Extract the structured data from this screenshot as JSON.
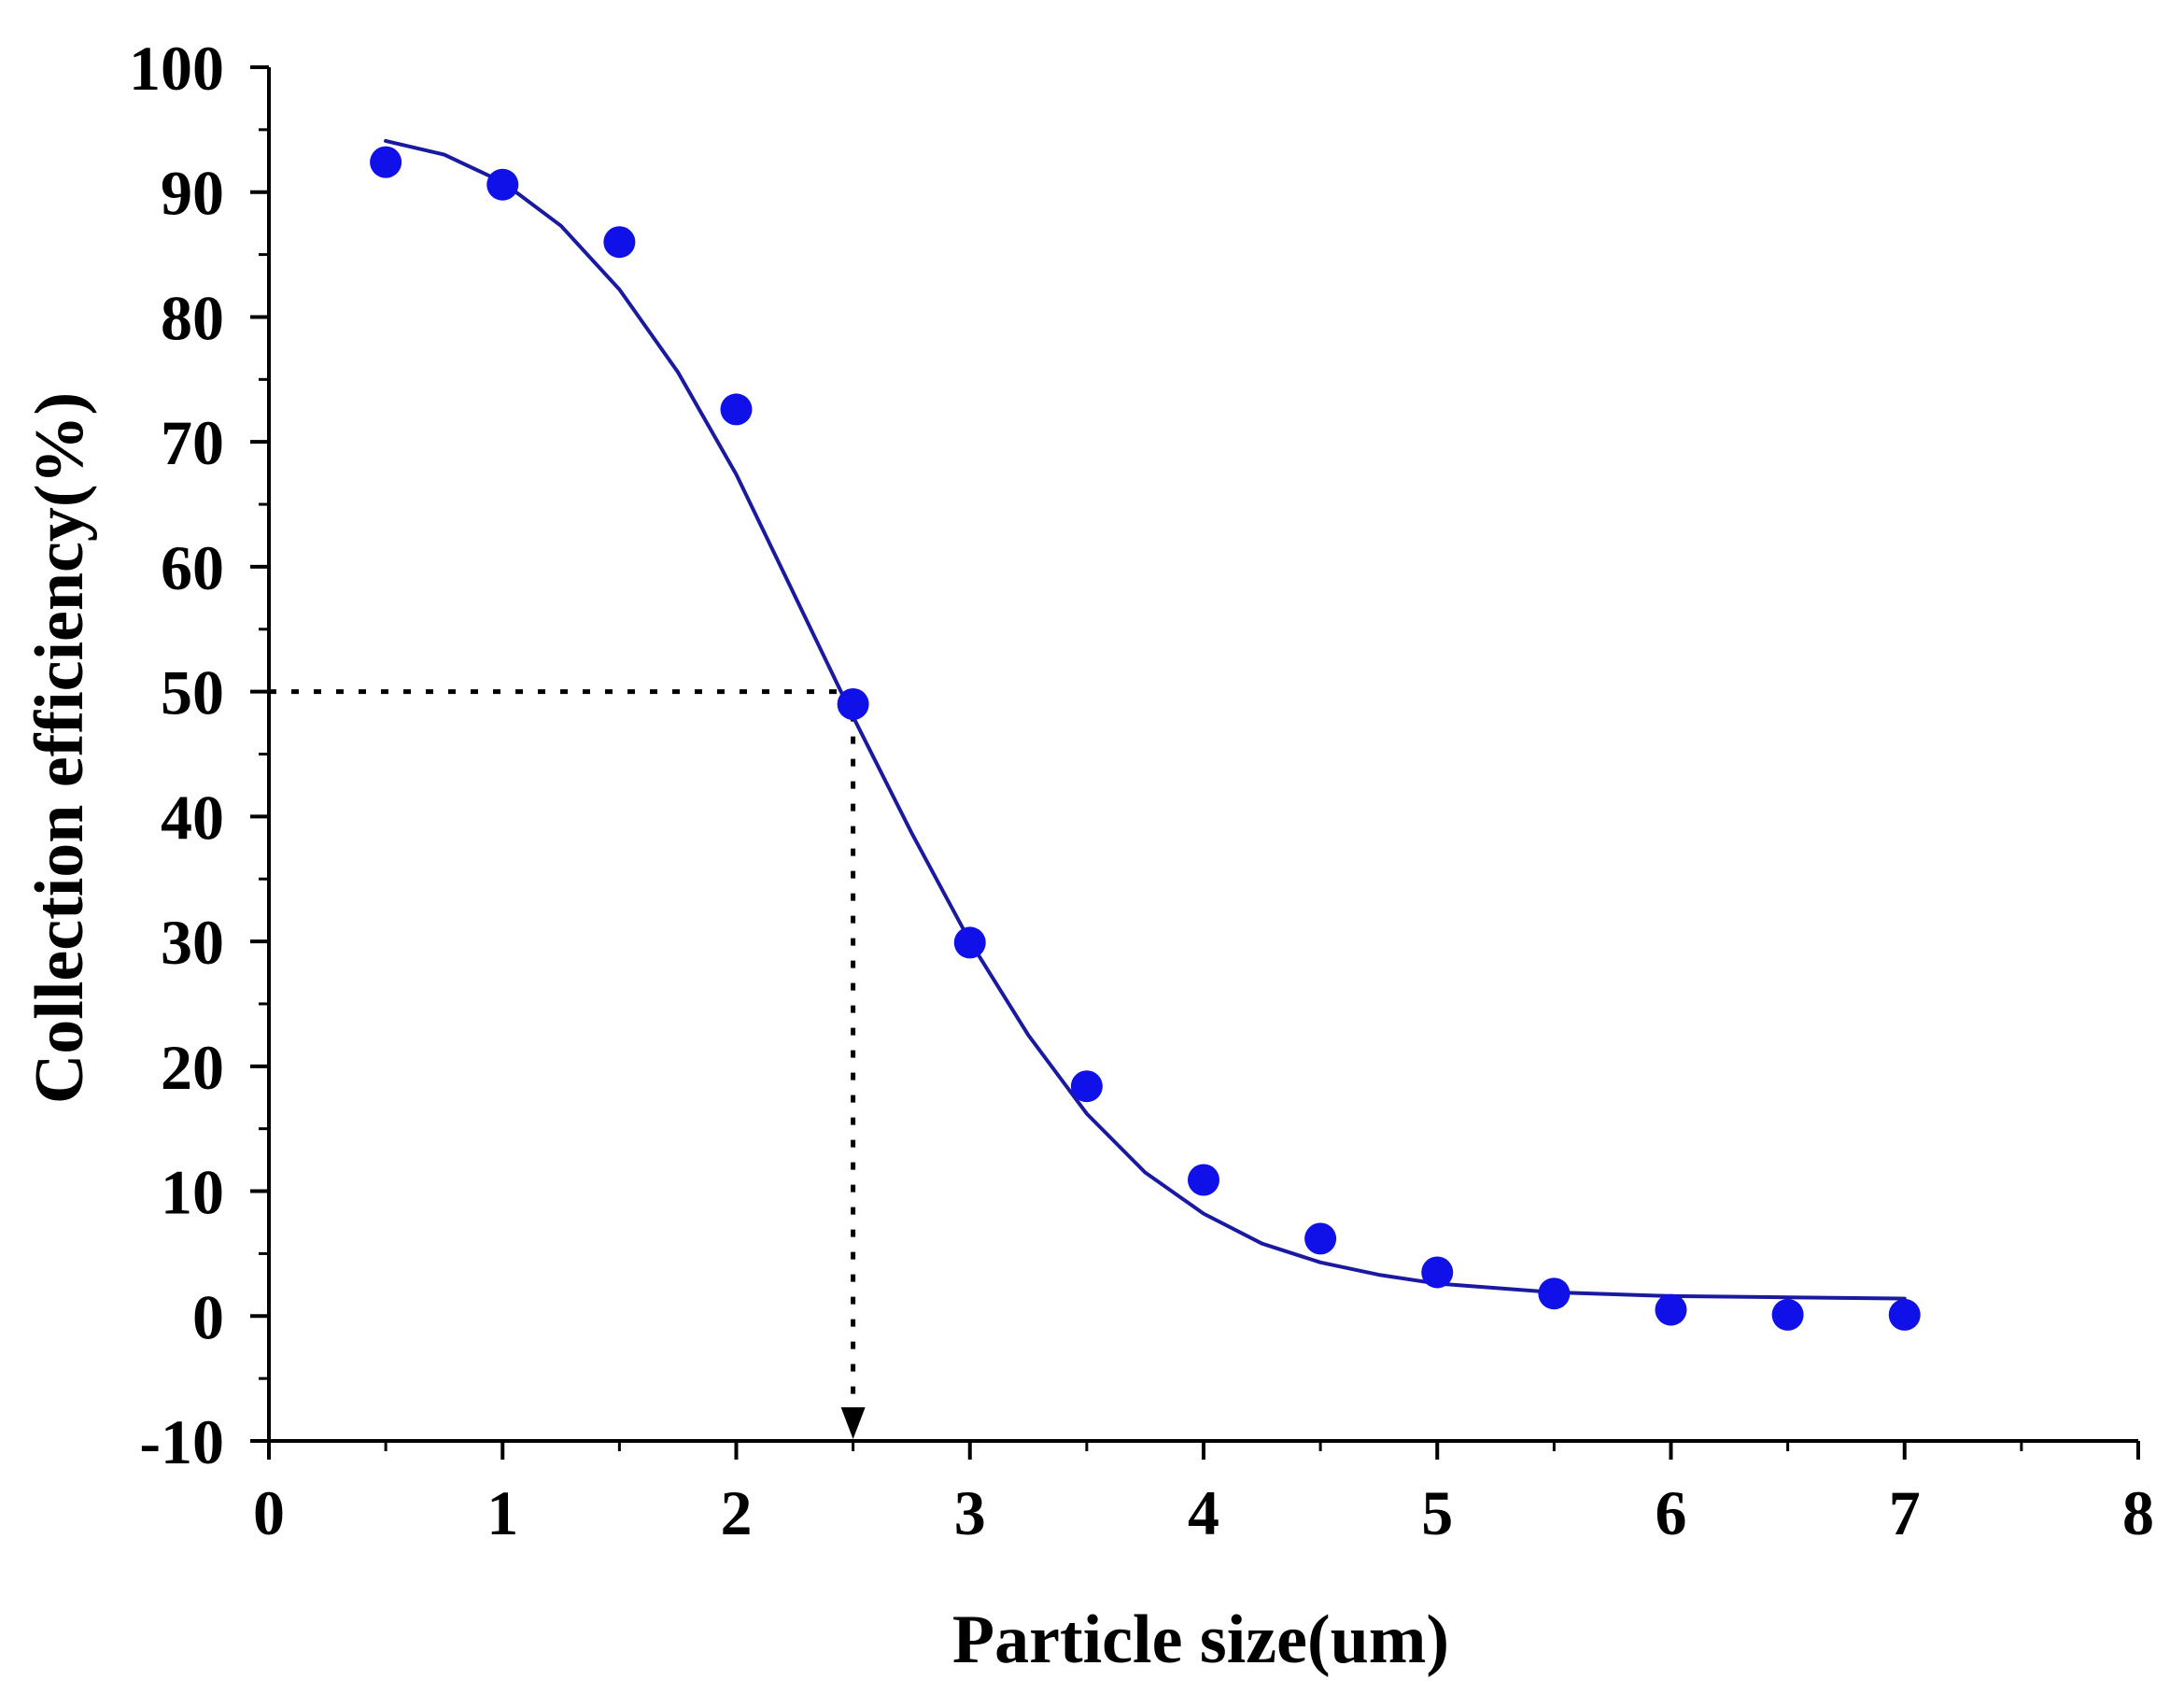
{
  "chart_data": {
    "type": "scatter",
    "xlabel": "Particle size(um)",
    "ylabel": "Collection efficiency(%)",
    "xlim": [
      0,
      8
    ],
    "ylim": [
      -10,
      100
    ],
    "x_ticks": [
      0,
      1,
      2,
      3,
      4,
      5,
      6,
      7,
      8
    ],
    "y_ticks": [
      -10,
      0,
      10,
      20,
      30,
      40,
      50,
      60,
      70,
      80,
      90,
      100
    ],
    "x_tick_labels": [
      "0",
      "1",
      "2",
      "3",
      "4",
      "5",
      "6",
      "7",
      "8"
    ],
    "y_tick_labels": [
      "-10",
      "0",
      "10",
      "20",
      "30",
      "40",
      "50",
      "60",
      "70",
      "80",
      "90",
      "100"
    ],
    "grid": false,
    "legend": "none",
    "series": [
      {
        "kind": "points",
        "color": "#1010e8",
        "x": [
          0.5,
          1.0,
          1.5,
          2.0,
          2.5,
          3.0,
          3.5,
          4.0,
          4.5,
          5.0,
          5.5,
          6.0,
          6.5,
          7.0
        ],
        "y": [
          92.4,
          90.6,
          86.0,
          72.6,
          49.0,
          29.9,
          18.4,
          10.9,
          6.2,
          3.5,
          1.8,
          0.5,
          0.1,
          0.1
        ]
      },
      {
        "kind": "fitted-curve",
        "color": "#1a1aa0",
        "x": [
          0.5,
          0.75,
          1.0,
          1.25,
          1.5,
          1.75,
          2.0,
          2.25,
          2.5,
          2.75,
          3.0,
          3.25,
          3.5,
          3.75,
          4.0,
          4.25,
          4.5,
          4.75,
          5.0,
          5.5,
          6.0,
          6.5,
          7.0
        ],
        "y": [
          94.1,
          93.0,
          90.8,
          87.3,
          82.2,
          75.6,
          67.4,
          57.7,
          48.0,
          38.7,
          30.0,
          22.5,
          16.2,
          11.5,
          8.2,
          5.8,
          4.3,
          3.3,
          2.6,
          1.9,
          1.6,
          1.5,
          1.4
        ]
      }
    ],
    "annotations": [
      {
        "kind": "dotted-guide",
        "color": "#000000",
        "x": 2.5,
        "y": 50,
        "description": "horizontal dotted line from y-axis at 50 to x=2.5, then vertical dotted arrow down to x-axis"
      }
    ]
  }
}
